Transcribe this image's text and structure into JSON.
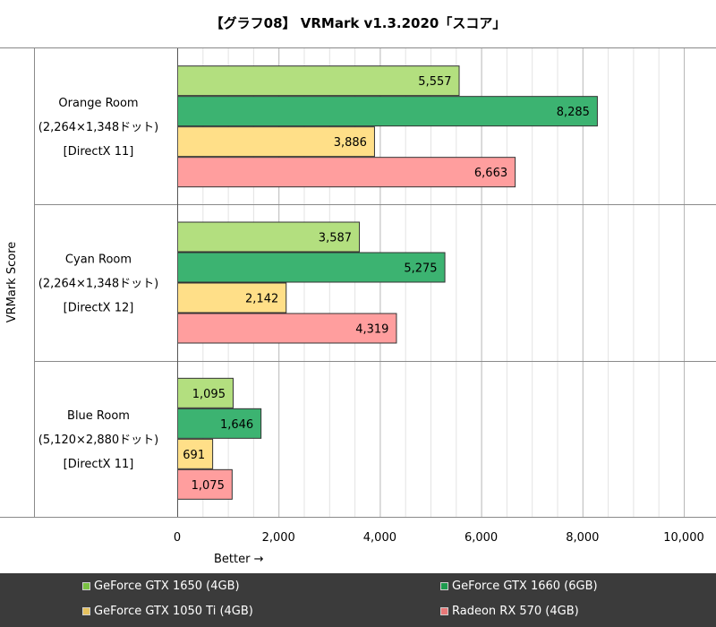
{
  "chart_data": {
    "type": "bar",
    "orientation": "horizontal",
    "title": "【グラフ08】 VRMark v1.3.2020「スコア」",
    "xlabel": "Better →",
    "ylabel": "VRMark Score",
    "xlim": [
      0,
      10000
    ],
    "xticks": [
      0,
      2000,
      4000,
      6000,
      8000,
      10000
    ],
    "xtick_labels": [
      "0",
      "2,000",
      "4,000",
      "6,000",
      "8,000",
      "10,000"
    ],
    "grid": true,
    "legend_position": "bottom",
    "categories": [
      {
        "lines": [
          "Orange Room",
          "(2,264×1,348ドット)",
          "[DirectX 11]"
        ]
      },
      {
        "lines": [
          "Cyan Room",
          "(2,264×1,348ドット)",
          "[DirectX 12]"
        ]
      },
      {
        "lines": [
          "Blue Room",
          "(5,120×2,880ドット)",
          "[DirectX 11]"
        ]
      }
    ],
    "series": [
      {
        "name": "GeForce GTX 1650 (4GB)",
        "color": "#b3df7f",
        "values": [
          5557,
          3587,
          1095
        ],
        "labels": [
          "5,557",
          "3,587",
          "1,095"
        ]
      },
      {
        "name": "GeForce GTX 1660 (6GB)",
        "color": "#3cb371",
        "values": [
          8285,
          5275,
          1646
        ],
        "labels": [
          "8,285",
          "5,275",
          "1,646"
        ]
      },
      {
        "name": "GeForce GTX 1050 Ti (4GB)",
        "color": "#ffdf88",
        "values": [
          3886,
          2142,
          691
        ],
        "labels": [
          "3,886",
          "2,142",
          "691"
        ]
      },
      {
        "name": "Radeon RX 570 (4GB)",
        "color": "#ff9e9e",
        "values": [
          6663,
          4319,
          1075
        ],
        "labels": [
          "6,663",
          "4,319",
          "1,075"
        ]
      }
    ]
  }
}
